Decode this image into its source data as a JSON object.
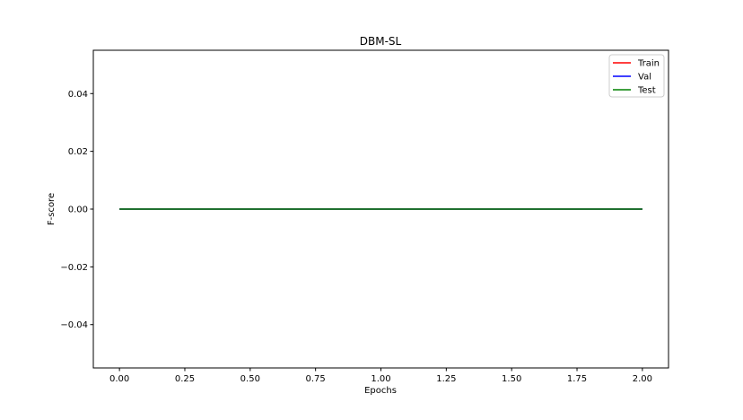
{
  "chart_data": {
    "type": "line",
    "title": "DBM-SL",
    "xlabel": "Epochs",
    "ylabel": "F-score",
    "xlim": [
      -0.1,
      2.1
    ],
    "ylim": [
      -0.055,
      0.055
    ],
    "xticks": [
      0.0,
      0.25,
      0.5,
      0.75,
      1.0,
      1.25,
      1.5,
      1.75,
      2.0
    ],
    "xtick_labels": [
      "0.00",
      "0.25",
      "0.50",
      "0.75",
      "1.00",
      "1.25",
      "1.50",
      "1.75",
      "2.00"
    ],
    "yticks": [
      -0.04,
      -0.02,
      0.0,
      0.02,
      0.04
    ],
    "ytick_labels": [
      "−0.04",
      "−0.02",
      "0.00",
      "0.02",
      "0.04"
    ],
    "grid": false,
    "legend_position": "top-right",
    "x": [
      0,
      1,
      2
    ],
    "series": [
      {
        "name": "Train",
        "color": "#ff0000",
        "values": [
          0,
          0,
          0
        ]
      },
      {
        "name": "Val",
        "color": "#0000ff",
        "values": [
          0,
          0,
          0
        ]
      },
      {
        "name": "Test",
        "color": "#008000",
        "values": [
          0,
          0,
          0
        ]
      }
    ]
  }
}
